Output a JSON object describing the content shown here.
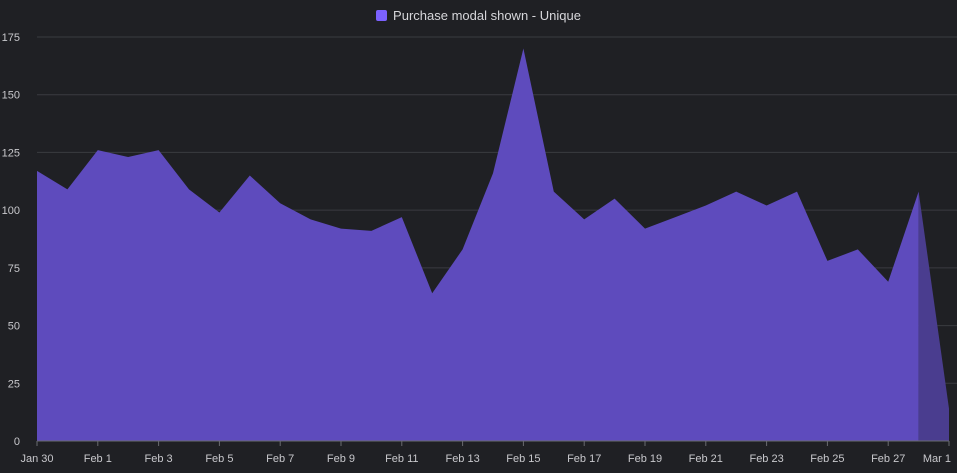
{
  "colors": {
    "background": "#1f2024",
    "series": "#5e4bbd",
    "series_incomplete": "#4a3d8f",
    "legend_swatch": "#7b61ff",
    "grid": "#3a3b40",
    "text": "#c8c8cc"
  },
  "chart_data": {
    "type": "area",
    "legend_position": "top-center",
    "grid": true,
    "ylim": [
      0,
      175
    ],
    "y_ticks": [
      "0",
      "25",
      "50",
      "75",
      "100",
      "125",
      "150",
      "175"
    ],
    "x_tick_labels": [
      "Jan 30",
      "Feb 1",
      "Feb 3",
      "Feb 5",
      "Feb 7",
      "Feb 9",
      "Feb 11",
      "Feb 13",
      "Feb 15",
      "Feb 17",
      "Feb 19",
      "Feb 21",
      "Feb 23",
      "Feb 25",
      "Feb 27",
      "Mar 1"
    ],
    "x": [
      "Jan 30",
      "Jan 31",
      "Feb 1",
      "Feb 2",
      "Feb 3",
      "Feb 4",
      "Feb 5",
      "Feb 6",
      "Feb 7",
      "Feb 8",
      "Feb 9",
      "Feb 10",
      "Feb 11",
      "Feb 12",
      "Feb 13",
      "Feb 14",
      "Feb 15",
      "Feb 16",
      "Feb 17",
      "Feb 18",
      "Feb 19",
      "Feb 20",
      "Feb 21",
      "Feb 22",
      "Feb 23",
      "Feb 24",
      "Feb 25",
      "Feb 26",
      "Feb 27",
      "Feb 28",
      "Mar 1"
    ],
    "series": [
      {
        "name": "Purchase modal shown - Unique",
        "values": [
          117,
          109,
          126,
          123,
          126,
          109,
          99,
          115,
          103,
          96,
          92,
          91,
          97,
          64,
          83,
          116,
          170,
          108,
          96,
          105,
          92,
          97,
          102,
          108,
          102,
          108,
          78,
          83,
          69,
          108,
          14
        ]
      }
    ]
  }
}
